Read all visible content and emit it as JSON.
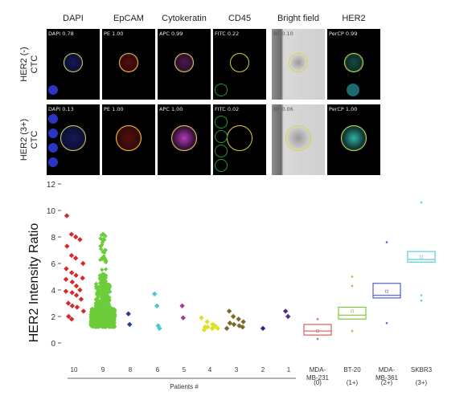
{
  "image_panel": {
    "columns": [
      "DAPI",
      "EpCAM",
      "Cytokeratin",
      "CD45",
      "Bright field",
      "HER2"
    ],
    "rows": [
      {
        "label_line1": "HER2 (-)",
        "label_line2": "CTC",
        "captions": [
          "DAPI 0.78",
          "PE 1.00",
          "APC 0.99",
          "FITC 0.22",
          "BF 0.10",
          "PerCP 0.99"
        ]
      },
      {
        "label_line1": "HER2 (3+)",
        "label_line2": "CTC",
        "captions": [
          "DAPI 0.13",
          "PE 1.00",
          "APC 1.00",
          "FITC 0.02",
          "BF 0.06",
          "PerCP 1.00"
        ]
      }
    ],
    "channel_colors": [
      "#3a4dff",
      "#ff2a2a",
      "#e04be8",
      "#3ed04a",
      "#bdbdbd",
      "#3fe0d0"
    ]
  },
  "chart_data": {
    "type": "scatter",
    "ylabel": "HER2 Intensity Ratio",
    "ylim": [
      0,
      12
    ],
    "yticks": [
      0,
      2,
      4,
      6,
      8,
      10,
      12
    ],
    "group_title": "Patients #",
    "patients": [
      {
        "label": "10",
        "color": "#d42a2a",
        "marker": "diamond",
        "values": [
          9.6,
          8.2,
          8.0,
          7.8,
          7.3,
          6.6,
          6.4,
          6.0,
          5.6,
          5.3,
          5.1,
          4.9,
          4.8,
          4.6,
          4.3,
          4.0,
          3.9,
          3.8,
          3.6,
          3.3,
          3.0,
          2.8,
          2.7,
          2.4,
          2.0,
          1.8
        ]
      },
      {
        "label": "9",
        "color": "#6ccc3a",
        "marker": "diamond",
        "dense": true,
        "min": 0.8,
        "max": 8.2,
        "median": 1.7
      },
      {
        "label": "8",
        "color": "#2a3a9a",
        "marker": "diamond",
        "values": [
          2.2,
          1.4
        ]
      },
      {
        "label": "6",
        "color": "#4cc4d8",
        "marker": "diamond",
        "values": [
          3.7,
          2.8,
          1.3,
          1.1
        ]
      },
      {
        "label": "5",
        "color": "#a03aa0",
        "marker": "diamond",
        "values": [
          2.8,
          1.9
        ]
      },
      {
        "label": "4",
        "color": "#e0e020",
        "marker": "diamond",
        "values": [
          1.9,
          1.6,
          1.4,
          1.3,
          1.2,
          1.2,
          1.1,
          1.1,
          1.0
        ]
      },
      {
        "label": "3",
        "color": "#7a6a2a",
        "marker": "diamond",
        "values": [
          2.4,
          2.0,
          1.8,
          1.6,
          1.5,
          1.4,
          1.3,
          1.2,
          1.1
        ]
      },
      {
        "label": "2",
        "color": "#2a2a8a",
        "marker": "diamond",
        "values": [
          1.1
        ]
      },
      {
        "label": "1",
        "color": "#5a2a8a",
        "marker": "diamond",
        "values": [
          2.4,
          2.0
        ]
      }
    ],
    "cell_lines": [
      {
        "label_lines": [
          "MDA-",
          "MB-231",
          "(0)"
        ],
        "color": "#e06a6a",
        "q1": 0.6,
        "median": 0.9,
        "q3": 1.4,
        "mean": 0.9,
        "points": [
          1.8,
          0.3
        ]
      },
      {
        "label_lines": [
          "BT-20",
          "",
          "(1+)"
        ],
        "color": "#8acc4a",
        "q1": 1.8,
        "median": 2.1,
        "q3": 2.7,
        "mean": 2.4,
        "points": [
          5.0,
          4.3,
          0.9
        ]
      },
      {
        "label_lines": [
          "MDA-",
          "MB-361",
          "(2+)"
        ],
        "color": "#5a6ad0",
        "q1": 3.4,
        "median": 3.6,
        "q3": 4.5,
        "mean": 3.9,
        "points": [
          7.6,
          1.5
        ]
      },
      {
        "label_lines": [
          "SKBR3",
          "",
          "(3+)"
        ],
        "color": "#6ad0e0",
        "q1": 6.1,
        "median": 6.3,
        "q3": 6.9,
        "mean": 6.5,
        "points": [
          10.6,
          3.6,
          3.2
        ]
      }
    ]
  }
}
